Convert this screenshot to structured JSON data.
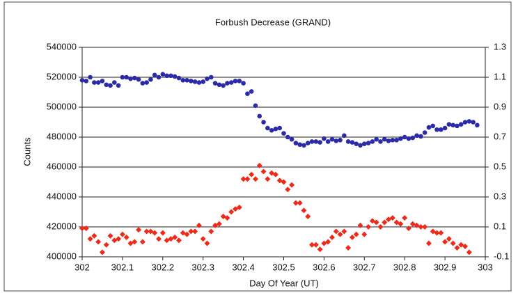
{
  "chart_data": {
    "type": "scatter",
    "title": "Forbush Decrease (GRAND)",
    "x_label": "Day Of Year (UT)",
    "y_label": "Counts",
    "xlim": [
      302,
      303
    ],
    "xticks": [
      302,
      302.1,
      302.2,
      302.3,
      302.4,
      302.5,
      302.6,
      302.7,
      302.8,
      302.9,
      303
    ],
    "ylim": [
      400000,
      540000
    ],
    "yticks": [
      400000,
      420000,
      440000,
      460000,
      480000,
      500000,
      520000,
      540000
    ],
    "y2lim": [
      -0.1,
      1.3
    ],
    "y2ticks": [
      -0.1,
      0.1,
      0.3,
      0.5,
      0.7,
      0.9,
      1.1,
      1.3
    ],
    "grid": true,
    "x": [
      302.0,
      302.01,
      302.02,
      302.03,
      302.04,
      302.05,
      302.06,
      302.07,
      302.08,
      302.09,
      302.1,
      302.11,
      302.12,
      302.13,
      302.14,
      302.15,
      302.16,
      302.17,
      302.18,
      302.19,
      302.2,
      302.21,
      302.22,
      302.23,
      302.24,
      302.25,
      302.26,
      302.27,
      302.28,
      302.29,
      302.3,
      302.31,
      302.32,
      302.33,
      302.34,
      302.35,
      302.36,
      302.37,
      302.38,
      302.39,
      302.4,
      302.41,
      302.42,
      302.43,
      302.44,
      302.45,
      302.46,
      302.47,
      302.48,
      302.49,
      302.5,
      302.51,
      302.52,
      302.53,
      302.54,
      302.55,
      302.56,
      302.57,
      302.58,
      302.59,
      302.6,
      302.61,
      302.62,
      302.63,
      302.64,
      302.65,
      302.66,
      302.67,
      302.68,
      302.69,
      302.7,
      302.71,
      302.72,
      302.73,
      302.74,
      302.75,
      302.76,
      302.77,
      302.78,
      302.79,
      302.8,
      302.81,
      302.82,
      302.83,
      302.84,
      302.85,
      302.86,
      302.87,
      302.88,
      302.89,
      302.9,
      302.91,
      302.92,
      302.93,
      302.94,
      302.95,
      302.96,
      302.97,
      302.98
    ],
    "series": [
      {
        "color": "#2b2ba8",
        "marker": "circle",
        "values": [
          518000,
          517500,
          520000,
          516500,
          516500,
          517500,
          515000,
          514500,
          516500,
          514500,
          520000,
          520000,
          519000,
          519500,
          518500,
          516000,
          516500,
          518500,
          521500,
          520000,
          522000,
          521000,
          521000,
          520500,
          519500,
          518000,
          518000,
          517500,
          517000,
          516500,
          517000,
          519000,
          520000,
          516000,
          515000,
          514500,
          516000,
          516500,
          517500,
          517500,
          516000,
          509000,
          510500,
          501000,
          494000,
          490000,
          486000,
          484500,
          485500,
          486000,
          482500,
          480000,
          478500,
          476000,
          475000,
          474500,
          476000,
          477000,
          477000,
          476500,
          479000,
          477000,
          478500,
          477500,
          478000,
          481000,
          477000,
          476500,
          475500,
          474500,
          475500,
          476000,
          477000,
          478500,
          477000,
          478500,
          477500,
          478000,
          478000,
          479000,
          480000,
          479000,
          479500,
          481000,
          480500,
          483000,
          486500,
          487500,
          485000,
          485000,
          486000,
          488500,
          488000,
          487500,
          488500,
          490000,
          490500,
          490000,
          488000
        ]
      },
      {
        "color": "#ee2a1a",
        "marker": "diamond",
        "axis": "y2",
        "values": [
          0.09,
          0.09,
          0.02,
          0.04,
          0.0,
          -0.07,
          -0.02,
          0.04,
          0.01,
          0.02,
          0.05,
          0.03,
          -0.01,
          0.0,
          0.08,
          0.0,
          0.07,
          0.07,
          0.06,
          0.02,
          0.06,
          0.01,
          0.02,
          0.03,
          0.01,
          0.06,
          0.05,
          0.07,
          0.07,
          0.11,
          0.02,
          -0.01,
          0.07,
          0.11,
          0.12,
          0.17,
          0.16,
          0.2,
          0.22,
          0.23,
          0.42,
          0.42,
          0.45,
          0.42,
          0.51,
          0.47,
          0.42,
          0.46,
          0.45,
          0.41,
          0.4,
          0.35,
          0.38,
          0.26,
          0.26,
          0.21,
          0.17,
          -0.02,
          -0.02,
          -0.05,
          -0.01,
          0.0,
          0.03,
          0.07,
          0.05,
          0.07,
          -0.04,
          0.03,
          0.05,
          0.11,
          0.05,
          0.1,
          0.14,
          0.13,
          0.1,
          0.13,
          0.15,
          0.16,
          0.13,
          0.12,
          0.16,
          0.09,
          0.12,
          0.11,
          0.1,
          0.1,
          -0.01,
          0.07,
          0.06,
          0.06,
          0.0,
          0.02,
          -0.01,
          -0.04,
          -0.02,
          -0.03,
          -0.07,
          null,
          null
        ]
      }
    ]
  }
}
